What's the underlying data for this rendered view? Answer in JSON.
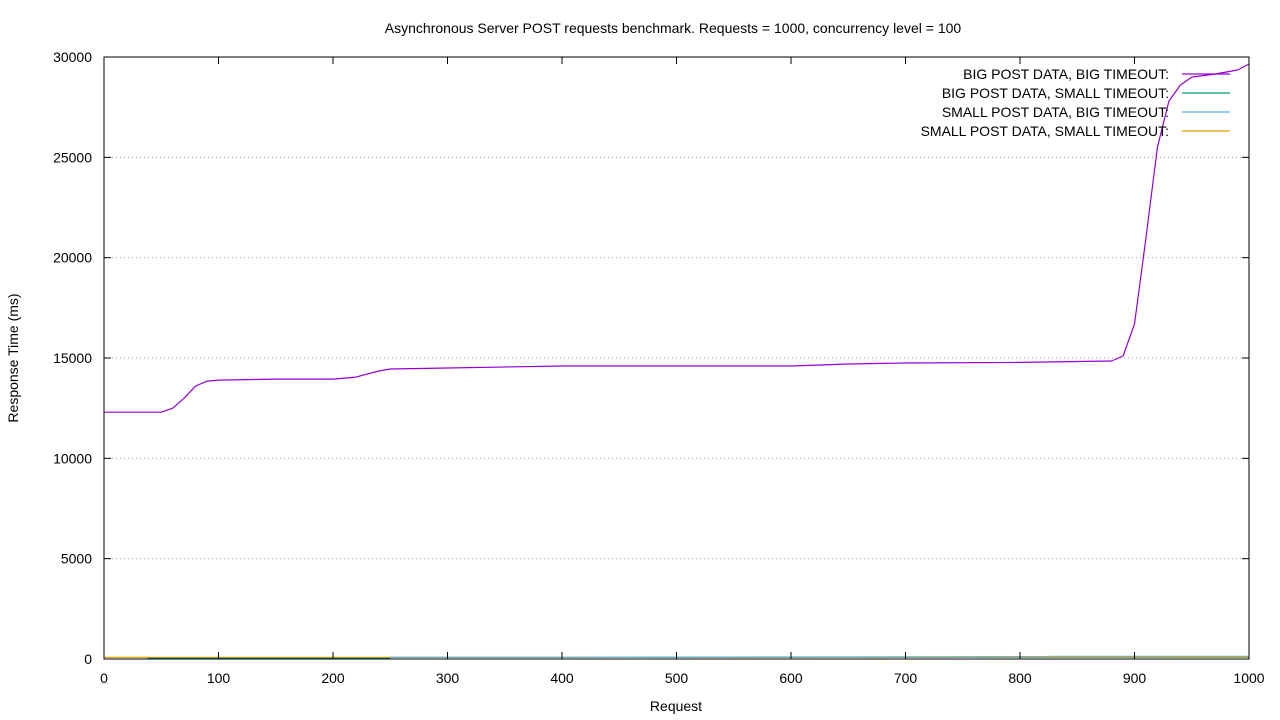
{
  "chart_data": {
    "type": "line",
    "title": "Asynchronous Server POST requests benchmark. Requests = 1000, concurrency level = 100",
    "xlabel": "Request",
    "ylabel": "Response Time (ms)",
    "xlim": [
      0,
      1000
    ],
    "ylim": [
      0,
      30000
    ],
    "xticks": [
      0,
      100,
      200,
      300,
      400,
      500,
      600,
      700,
      800,
      900,
      1000
    ],
    "yticks": [
      0,
      5000,
      10000,
      15000,
      20000,
      25000,
      30000
    ],
    "grid": "horizontal",
    "legend_position": "top-right",
    "series": [
      {
        "name": "BIG POST DATA, BIG TIMEOUT:",
        "color": "#9400d3",
        "x": [
          0,
          50,
          60,
          70,
          80,
          90,
          100,
          150,
          200,
          220,
          240,
          250,
          300,
          400,
          500,
          600,
          650,
          700,
          800,
          880,
          890,
          900,
          910,
          920,
          930,
          940,
          950,
          970,
          990,
          1000
        ],
        "y": [
          12300,
          12300,
          12500,
          13000,
          13600,
          13850,
          13900,
          13950,
          13950,
          14050,
          14350,
          14450,
          14500,
          14600,
          14600,
          14600,
          14700,
          14750,
          14780,
          14850,
          15100,
          16700,
          21000,
          25500,
          27800,
          28600,
          29000,
          29150,
          29350,
          29650
        ]
      },
      {
        "name": "BIG POST DATA, SMALL TIMEOUT:",
        "color": "#009e73",
        "x": [
          38,
          100,
          200,
          250
        ],
        "y": [
          30,
          30,
          30,
          30
        ]
      },
      {
        "name": "SMALL POST DATA, BIG TIMEOUT:",
        "color": "#56b4e9",
        "x": [
          250,
          400,
          600,
          820,
          830,
          900,
          1000
        ],
        "y": [
          90,
          90,
          100,
          120,
          130,
          130,
          135
        ]
      },
      {
        "name": "SMALL POST DATA, SMALL TIMEOUT:",
        "color": "#e69f00",
        "x": [
          0,
          200,
          400,
          600,
          800,
          1000
        ],
        "y": [
          80,
          80,
          80,
          80,
          80,
          80
        ]
      }
    ]
  }
}
